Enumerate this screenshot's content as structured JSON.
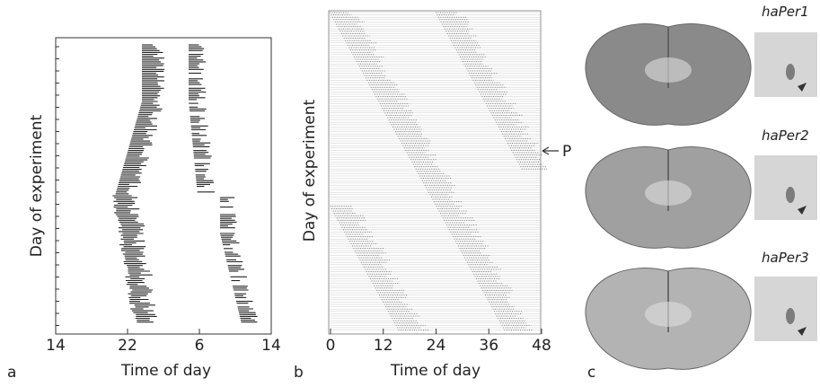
{
  "panels": [
    {
      "letter": "a",
      "x_label": "Time of day",
      "y_label": "Day of experiment",
      "x_tick_labels": [
        "14",
        "22",
        "6",
        "14"
      ]
    },
    {
      "letter": "b",
      "x_label": "Time of day",
      "y_label": "Day of experiment",
      "x_tick_labels": [
        "0",
        "12",
        "24",
        "36",
        "48"
      ],
      "annotation": "P"
    },
    {
      "letter": "c",
      "image_labels": [
        "haPer1",
        "haPer2",
        "haPer3"
      ]
    }
  ]
}
